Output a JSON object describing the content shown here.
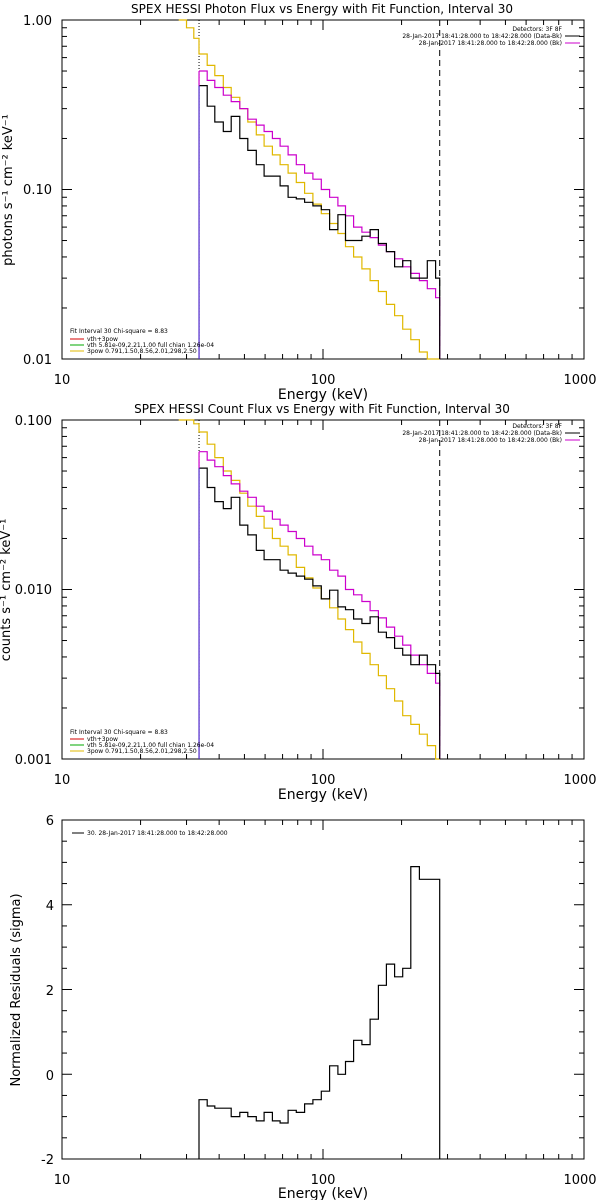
{
  "chart_data": [
    {
      "type": "line",
      "title": "SPEX HESSI Photon Flux vs Energy with Fit Function, Interval 30",
      "xlabel": "Energy (keV)",
      "ylabel": "photons s⁻¹ cm⁻² keV⁻¹",
      "xscale": "log",
      "yscale": "log",
      "xlim": [
        10,
        1000
      ],
      "ylim": [
        0.01,
        1.0
      ],
      "xticks": [
        "10",
        "100",
        "1000"
      ],
      "yticks": [
        "0.01",
        "0.10",
        "1.00"
      ],
      "vlines": {
        "dotted": 33.5,
        "dashed": 280
      },
      "legend_top_right": {
        "header": "Detectors: 3F 8F",
        "entries": [
          {
            "label": "28-Jan-2017 18:41:28.000 to 18:42:28.000 (Data-Bk)",
            "color": "#000000"
          },
          {
            "label": "28-Jan-2017 18:41:28.000 to 18:42:28.000 (Bk)",
            "color": "#cc00cc"
          }
        ]
      },
      "legend_bottom_left": {
        "header": "Fit Interval 30   Chi-square = 8.83",
        "entries": [
          {
            "label": "vth+3pow",
            "color": "#d40000"
          },
          {
            "label": "vth 5.81e-09,2.21,1.00  full chian 1.26e-04",
            "color": "#00aa00"
          },
          {
            "label": "3pow 0.791,1.50,8.56,2.01,298,2.50",
            "color": "#e0b800"
          }
        ]
      },
      "series": [
        {
          "color": "#000000",
          "x": [
            33.5,
            36,
            38.5,
            41.5,
            44.5,
            48,
            51.5,
            55.5,
            59.5,
            64,
            68.5,
            73.5,
            79,
            85,
            91.5,
            98.5,
            106,
            114,
            122,
            131,
            141,
            151.5,
            163,
            175,
            188,
            202,
            217,
            234,
            251,
            270,
            280
          ],
          "y": [
            0.41,
            0.31,
            0.25,
            0.22,
            0.27,
            0.2,
            0.17,
            0.14,
            0.12,
            0.12,
            0.105,
            0.09,
            0.088,
            0.084,
            0.08,
            0.076,
            0.058,
            0.071,
            0.05,
            0.05,
            0.053,
            0.058,
            0.048,
            0.043,
            0.035,
            0.038,
            0.03,
            0.03,
            0.038,
            0.03,
            0.03
          ]
        },
        {
          "color": "#cc00cc",
          "x": [
            33.5,
            36,
            38.5,
            41.5,
            44.5,
            48,
            51.5,
            55.5,
            59.5,
            64,
            68.5,
            73.5,
            79,
            85,
            91.5,
            98.5,
            106,
            114,
            122,
            131,
            141,
            151.5,
            163,
            175,
            188,
            202,
            217,
            234,
            251,
            270,
            280
          ],
          "y": [
            0.5,
            0.44,
            0.4,
            0.36,
            0.33,
            0.3,
            0.26,
            0.24,
            0.22,
            0.2,
            0.18,
            0.16,
            0.14,
            0.125,
            0.115,
            0.1,
            0.09,
            0.08,
            0.07,
            0.06,
            0.056,
            0.052,
            0.047,
            0.043,
            0.039,
            0.035,
            0.032,
            0.029,
            0.026,
            0.023,
            0.023
          ]
        },
        {
          "color": "#e0b800",
          "x": [
            28,
            30,
            32,
            33.5,
            36,
            38.5,
            41.5,
            44.5,
            48,
            51.5,
            55.5,
            59.5,
            64,
            68.5,
            73.5,
            79,
            85,
            91.5,
            98.5,
            106,
            114,
            122,
            131,
            141,
            151.5,
            163,
            175,
            188,
            202,
            217,
            234,
            251,
            270,
            280
          ],
          "y": [
            1.0,
            0.9,
            0.78,
            0.63,
            0.54,
            0.47,
            0.4,
            0.35,
            0.3,
            0.25,
            0.21,
            0.18,
            0.16,
            0.14,
            0.125,
            0.11,
            0.095,
            0.082,
            0.072,
            0.063,
            0.055,
            0.046,
            0.04,
            0.034,
            0.029,
            0.025,
            0.021,
            0.018,
            0.015,
            0.013,
            0.011,
            0.01,
            0.01,
            0.01
          ]
        }
      ]
    },
    {
      "type": "line",
      "title": "SPEX HESSI Count Flux vs Energy with Fit Function, Interval 30",
      "xlabel": "Energy (keV)",
      "ylabel": "counts s⁻¹ cm⁻² keV⁻¹",
      "xscale": "log",
      "yscale": "log",
      "xlim": [
        10,
        1000
      ],
      "ylim": [
        0.001,
        0.1
      ],
      "xticks": [
        "10",
        "100",
        "1000"
      ],
      "yticks": [
        "0.001",
        "0.010",
        "0.100"
      ],
      "vlines": {
        "dotted": 33.5,
        "dashed": 280
      },
      "legend_top_right": {
        "header": "Detectors: 3F 8F",
        "entries": [
          {
            "label": "28-Jan-2017 18:41:28.000 to 18:42:28.000 (Data-Bk)",
            "color": "#000000"
          },
          {
            "label": "28-Jan-2017 18:41:28.000 to 18:42:28.000 (Bk)",
            "color": "#cc00cc"
          }
        ]
      },
      "legend_bottom_left": {
        "header": "Fit Interval 30   Chi-square = 8.83",
        "entries": [
          {
            "label": "vth+3pow",
            "color": "#d40000"
          },
          {
            "label": "vth 5.81e-09,2.21,1.00  full chian 1.26e-04",
            "color": "#00aa00"
          },
          {
            "label": "3pow 0.791,1.50,8.56,2.01,298,2.50",
            "color": "#e0b800"
          }
        ]
      },
      "series": [
        {
          "color": "#000000",
          "x": [
            33.5,
            36,
            38.5,
            41.5,
            44.5,
            48,
            51.5,
            55.5,
            59.5,
            64,
            68.5,
            73.5,
            79,
            85,
            91.5,
            98.5,
            106,
            114,
            122,
            131,
            141,
            151.5,
            163,
            175,
            188,
            202,
            217,
            234,
            251,
            270,
            280
          ],
          "y": [
            0.052,
            0.04,
            0.033,
            0.03,
            0.035,
            0.024,
            0.021,
            0.017,
            0.015,
            0.015,
            0.013,
            0.0125,
            0.012,
            0.0115,
            0.0105,
            0.0088,
            0.0099,
            0.0079,
            0.0076,
            0.0067,
            0.0063,
            0.0069,
            0.0056,
            0.0052,
            0.0045,
            0.0041,
            0.0036,
            0.0041,
            0.0036,
            0.0032,
            0.0032
          ]
        },
        {
          "color": "#cc00cc",
          "x": [
            33.5,
            36,
            38.5,
            41.5,
            44.5,
            48,
            51.5,
            55.5,
            59.5,
            64,
            68.5,
            73.5,
            79,
            85,
            91.5,
            98.5,
            106,
            114,
            122,
            131,
            141,
            151.5,
            163,
            175,
            188,
            202,
            217,
            234,
            251,
            270,
            280
          ],
          "y": [
            0.065,
            0.058,
            0.053,
            0.047,
            0.042,
            0.038,
            0.035,
            0.031,
            0.029,
            0.026,
            0.024,
            0.022,
            0.02,
            0.018,
            0.016,
            0.015,
            0.013,
            0.012,
            0.01,
            0.0093,
            0.0085,
            0.0075,
            0.0068,
            0.006,
            0.0053,
            0.0047,
            0.0041,
            0.0036,
            0.0032,
            0.0028,
            0.0028
          ]
        },
        {
          "color": "#e0b800",
          "x": [
            28,
            30,
            32,
            33.5,
            36,
            38.5,
            41.5,
            44.5,
            48,
            51.5,
            55.5,
            59.5,
            64,
            68.5,
            73.5,
            79,
            85,
            91.5,
            98.5,
            106,
            114,
            122,
            131,
            141,
            151.5,
            163,
            175,
            188,
            202,
            217,
            234,
            251,
            270,
            280
          ],
          "y": [
            0.1,
            0.1,
            0.095,
            0.085,
            0.072,
            0.06,
            0.05,
            0.044,
            0.037,
            0.031,
            0.027,
            0.023,
            0.02,
            0.018,
            0.016,
            0.0135,
            0.0117,
            0.0102,
            0.0088,
            0.0078,
            0.0067,
            0.0058,
            0.0049,
            0.0042,
            0.0036,
            0.0031,
            0.0026,
            0.0022,
            0.0018,
            0.0016,
            0.0014,
            0.0012,
            0.001,
            0.001
          ]
        }
      ]
    },
    {
      "type": "line",
      "title": "",
      "xlabel": "Energy (keV)",
      "ylabel": "Normalized Residuals (sigma)",
      "xscale": "log",
      "yscale": "linear",
      "xlim": [
        10,
        1000
      ],
      "ylim": [
        -2,
        6
      ],
      "xticks": [
        "10",
        "100",
        "1000"
      ],
      "yticks": [
        "-2",
        "0",
        "2",
        "4",
        "6"
      ],
      "legend_top_left": {
        "entries": [
          {
            "label": "30. 28-Jan-2017 18:41:28.000 to 18:42:28.000",
            "color": "#000000"
          }
        ]
      },
      "series": [
        {
          "color": "#000000",
          "x": [
            33.5,
            36,
            38.5,
            41.5,
            44.5,
            48,
            51.5,
            55.5,
            59.5,
            64,
            68.5,
            73.5,
            79,
            85,
            91.5,
            98.5,
            106,
            114,
            122,
            131,
            141,
            151.5,
            163,
            175,
            188,
            202,
            217,
            234,
            251,
            270,
            280
          ],
          "y": [
            -0.6,
            -0.75,
            -0.8,
            -0.8,
            -1.0,
            -0.9,
            -1.0,
            -1.1,
            -0.9,
            -1.1,
            -1.15,
            -0.85,
            -0.9,
            -0.7,
            -0.6,
            -0.4,
            0.2,
            0.0,
            0.3,
            0.8,
            0.7,
            1.3,
            2.1,
            2.6,
            2.3,
            2.5,
            4.9,
            4.6,
            4.6,
            4.6,
            -2.0
          ]
        }
      ]
    }
  ]
}
